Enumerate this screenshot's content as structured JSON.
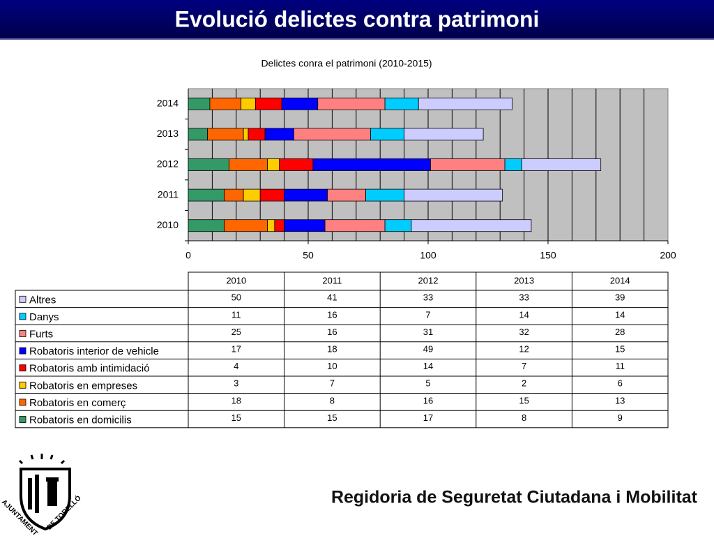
{
  "header": {
    "title": "Evolució delictes contra patrimoni"
  },
  "chart_data": {
    "type": "bar",
    "orientation": "horizontal",
    "stacked": true,
    "title": "Delictes conra el patrimoni (2010-2015)",
    "categories": [
      "2010",
      "2011",
      "2012",
      "2013",
      "2014"
    ],
    "series": [
      {
        "name": "Robatoris en domicilis",
        "color": "#339966",
        "values": [
          15,
          15,
          17,
          8,
          9
        ]
      },
      {
        "name": "Robatoris en comerç",
        "color": "#ff6600",
        "values": [
          18,
          8,
          16,
          15,
          13
        ]
      },
      {
        "name": "Robatoris en empreses",
        "color": "#ffcc00",
        "values": [
          3,
          7,
          5,
          2,
          6
        ]
      },
      {
        "name": "Robatoris amb intimidació",
        "color": "#ff0000",
        "values": [
          4,
          10,
          14,
          7,
          11
        ]
      },
      {
        "name": "Robatoris interior de vehicle",
        "color": "#0000ff",
        "values": [
          17,
          18,
          49,
          12,
          15
        ]
      },
      {
        "name": "Furts",
        "color": "#ff8080",
        "values": [
          25,
          16,
          31,
          32,
          28
        ]
      },
      {
        "name": "Danys",
        "color": "#00ccff",
        "values": [
          11,
          16,
          7,
          14,
          14
        ]
      },
      {
        "name": "Altres",
        "color": "#ccccff",
        "values": [
          50,
          41,
          33,
          33,
          39
        ]
      }
    ],
    "xlim": [
      0,
      200
    ],
    "xticks": [
      0,
      50,
      100,
      150,
      200
    ],
    "xgrid": [
      10,
      20,
      30,
      40,
      50,
      60,
      70,
      80,
      90,
      100,
      110,
      120,
      130,
      140,
      150,
      160,
      170,
      180,
      190
    ],
    "grid": true
  },
  "footer": {
    "text": "Regidoria de Seguretat Ciutadana i Mobilitat"
  },
  "logo": {
    "top": "AJUNTAMENT",
    "bottom": "DE TORELLÓ"
  }
}
